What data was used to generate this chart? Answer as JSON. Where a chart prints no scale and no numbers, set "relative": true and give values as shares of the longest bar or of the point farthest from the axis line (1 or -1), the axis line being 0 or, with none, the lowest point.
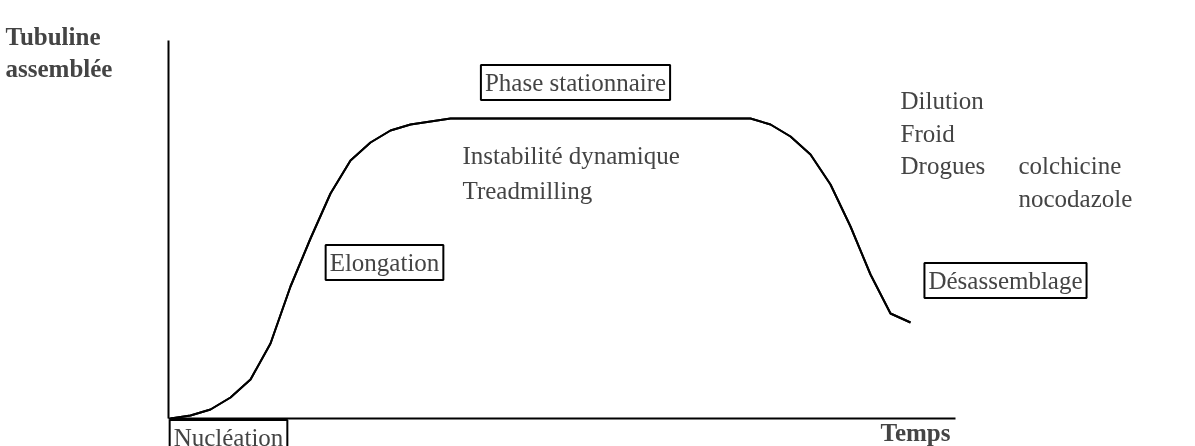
{
  "chart_data": {
    "type": "line",
    "relative": true,
    "xlabel": "Temps",
    "ylabel": "Tubuline assemblée",
    "color": "#000000",
    "marker": "none",
    "line_style": "solid",
    "grid": false,
    "categories": [
      null,
      null,
      null,
      null,
      null,
      null,
      null,
      null,
      null,
      null,
      null,
      null,
      null,
      null,
      null,
      null,
      null,
      null,
      null,
      null,
      null,
      null,
      null,
      null,
      null,
      null,
      null,
      null,
      null,
      null,
      null,
      null,
      null,
      null,
      null,
      null,
      null,
      null
    ],
    "values": [
      0,
      0.01,
      0.03,
      0.07,
      0.13,
      0.25,
      0.44,
      0.6,
      0.75,
      0.86,
      0.92,
      0.96,
      0.98,
      0.99,
      1,
      1,
      1,
      1,
      1,
      1,
      1,
      1,
      1,
      1,
      1,
      1,
      1,
      1,
      1,
      1,
      0.98,
      0.94,
      0.88,
      0.78,
      0.64,
      0.48,
      0.35,
      0.32
    ],
    "annotations": [
      "Phase stationnaire",
      "Instabilité dynamique",
      "Treadmilling",
      "Elongation",
      "Nucléation",
      "Dilution",
      "Froid",
      "Drogues",
      "colchicine",
      "nocodazole",
      "Désassemblage"
    ]
  }
}
